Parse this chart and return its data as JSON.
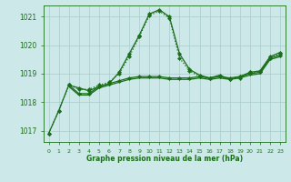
{
  "title": "Graphe pression niveau de la mer (hPa)",
  "background_color": "#cce8e8",
  "grid_color": "#aacccc",
  "line_color": "#1a6e1a",
  "xlim": [
    -0.5,
    23.5
  ],
  "ylim": [
    1016.6,
    1021.4
  ],
  "yticks": [
    1017,
    1018,
    1019,
    1020,
    1021
  ],
  "xticks": [
    0,
    1,
    2,
    3,
    4,
    5,
    6,
    7,
    8,
    9,
    10,
    11,
    12,
    13,
    14,
    15,
    16,
    17,
    18,
    19,
    20,
    21,
    22,
    23
  ],
  "series": [
    {
      "x": [
        0,
        1,
        2,
        3,
        4,
        5,
        6,
        7,
        8,
        9,
        10,
        11,
        12,
        13,
        14,
        15,
        16,
        17,
        18,
        19,
        20,
        21,
        22,
        23
      ],
      "y": [
        1016.9,
        1017.7,
        1018.6,
        1018.5,
        1018.4,
        1018.55,
        1018.65,
        1019.05,
        1019.7,
        1020.35,
        1021.1,
        1021.25,
        1021.0,
        1019.7,
        1019.15,
        1018.95,
        1018.85,
        1018.95,
        1018.8,
        1018.9,
        1019.05,
        1019.1,
        1019.6,
        1019.75
      ],
      "linestyle": "-",
      "linewidth": 0.9,
      "marker": "D",
      "markersize": 2.2,
      "has_marker": true
    },
    {
      "x": [
        2,
        3,
        4,
        5,
        6,
        7,
        8,
        9,
        10,
        11,
        12,
        13,
        14,
        15,
        16,
        17,
        18,
        19,
        20,
        21,
        22,
        23
      ],
      "y": [
        1018.6,
        1018.3,
        1018.3,
        1018.55,
        1018.65,
        1018.75,
        1018.85,
        1018.9,
        1018.9,
        1018.9,
        1018.85,
        1018.85,
        1018.85,
        1018.9,
        1018.85,
        1018.9,
        1018.85,
        1018.9,
        1019.0,
        1019.05,
        1019.55,
        1019.65
      ],
      "linestyle": "-",
      "linewidth": 0.9,
      "marker": "D",
      "markersize": 2.2,
      "has_marker": true
    },
    {
      "x": [
        2,
        3,
        4,
        5,
        6,
        7,
        8,
        9,
        10,
        11,
        12,
        13,
        14,
        15,
        16,
        17,
        18,
        19,
        20,
        21,
        22,
        23
      ],
      "y": [
        1018.55,
        1018.25,
        1018.25,
        1018.5,
        1018.6,
        1018.7,
        1018.8,
        1018.85,
        1018.85,
        1018.85,
        1018.8,
        1018.8,
        1018.8,
        1018.85,
        1018.8,
        1018.85,
        1018.8,
        1018.85,
        1018.95,
        1019.0,
        1019.5,
        1019.6
      ],
      "linestyle": "-",
      "linewidth": 0.9,
      "marker": null,
      "markersize": 0,
      "has_marker": false
    },
    {
      "x": [
        0,
        1,
        2,
        3,
        4,
        5,
        6,
        7,
        8,
        9,
        10,
        11,
        12,
        13,
        14,
        15,
        16,
        17,
        18,
        19,
        20,
        21,
        22,
        23
      ],
      "y": [
        1016.9,
        1017.7,
        1018.6,
        1018.45,
        1018.45,
        1018.6,
        1018.7,
        1019.0,
        1019.6,
        1020.3,
        1021.05,
        1021.2,
        1020.95,
        1019.55,
        1019.1,
        1018.9,
        1018.85,
        1018.9,
        1018.8,
        1018.85,
        1019.05,
        1019.05,
        1019.55,
        1019.7
      ],
      "linestyle": ":",
      "linewidth": 0.9,
      "marker": "D",
      "markersize": 2.2,
      "has_marker": true
    }
  ]
}
